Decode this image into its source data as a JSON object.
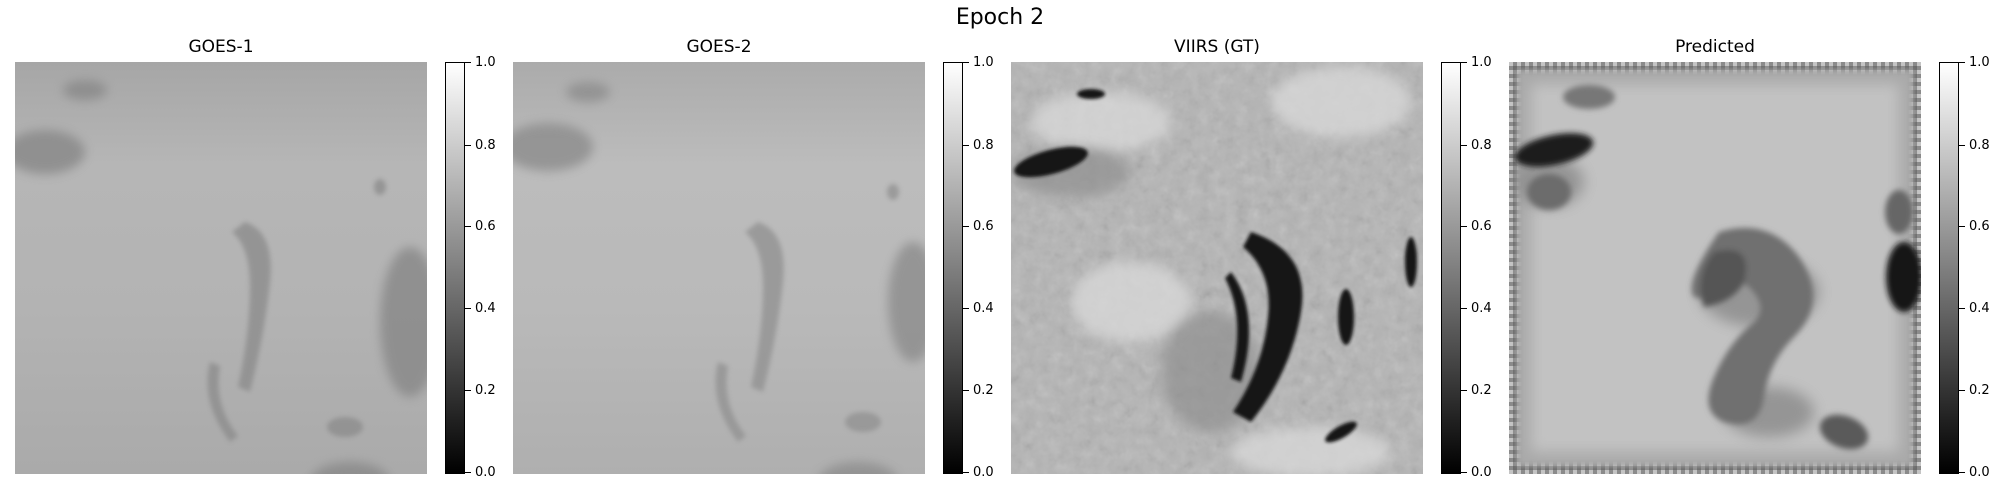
{
  "figure": {
    "title": "Epoch 2"
  },
  "panels": [
    {
      "title": "GOES-1",
      "image_description": "blurry grayscale satellite image, light gray with faint darker cloud streaks"
    },
    {
      "title": "GOES-2",
      "image_description": "blurry grayscale satellite image, similar to GOES-1 and slightly lighter"
    },
    {
      "title": "VIIRS (GT)",
      "image_description": "sharp high-resolution grayscale satellite image with dark cloud band in center-right"
    },
    {
      "title": "Predicted",
      "image_description": "smooth grayscale prediction with dark blobs and grid-like textured border"
    }
  ],
  "colorbar": {
    "colormap": "gray",
    "range": [
      0.0,
      1.0
    ],
    "ticks": [
      "0.0",
      "0.2",
      "0.4",
      "0.6",
      "0.8",
      "1.0"
    ]
  }
}
